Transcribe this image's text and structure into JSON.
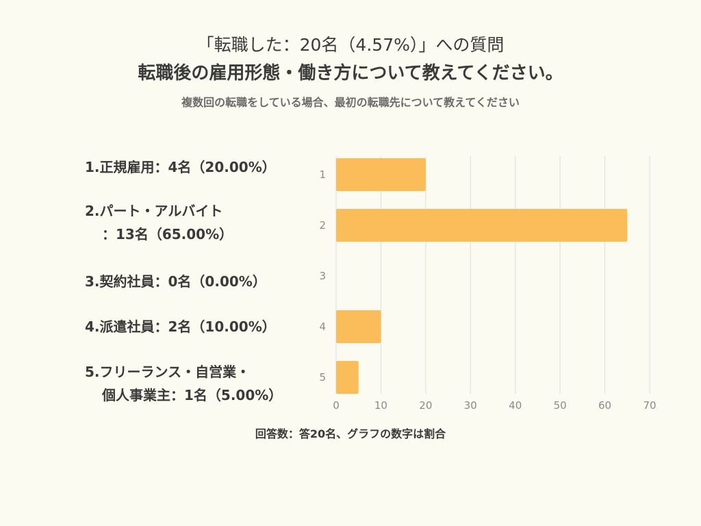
{
  "header": {
    "title": "「転職した：20名（4.57%）」への質問",
    "question": "転職後の雇用形態・働き方について教えてください。",
    "note": "複数回の転職をしている場合、最初の転職先について教えてください"
  },
  "labels": [
    {
      "line1": "1.正規雇用：4名（20.00%）",
      "line2": ""
    },
    {
      "line1": "2.パート・アルバイト",
      "line2": "：13名（65.00%）"
    },
    {
      "line1": "3.契約社員：0名（0.00%）",
      "line2": ""
    },
    {
      "line1": "4.派遣社員：2名（10.00%）",
      "line2": ""
    },
    {
      "line1": "5.フリーランス・自営業・",
      "line2": "個人事業主：1名（5.00%）"
    }
  ],
  "footer": "回答数：答20名、グラフの数字は割合",
  "chart_data": {
    "type": "bar",
    "orientation": "horizontal",
    "categories": [
      "1",
      "2",
      "3",
      "4",
      "5"
    ],
    "values": [
      20,
      65,
      0,
      10,
      5
    ],
    "xlim": [
      0,
      70
    ],
    "xticks": [
      0,
      10,
      20,
      30,
      40,
      50,
      60,
      70
    ],
    "grid": true,
    "bar_color": "#fbbd5a",
    "grid_color": "#dedede",
    "tick_color": "#8a8a8a"
  }
}
